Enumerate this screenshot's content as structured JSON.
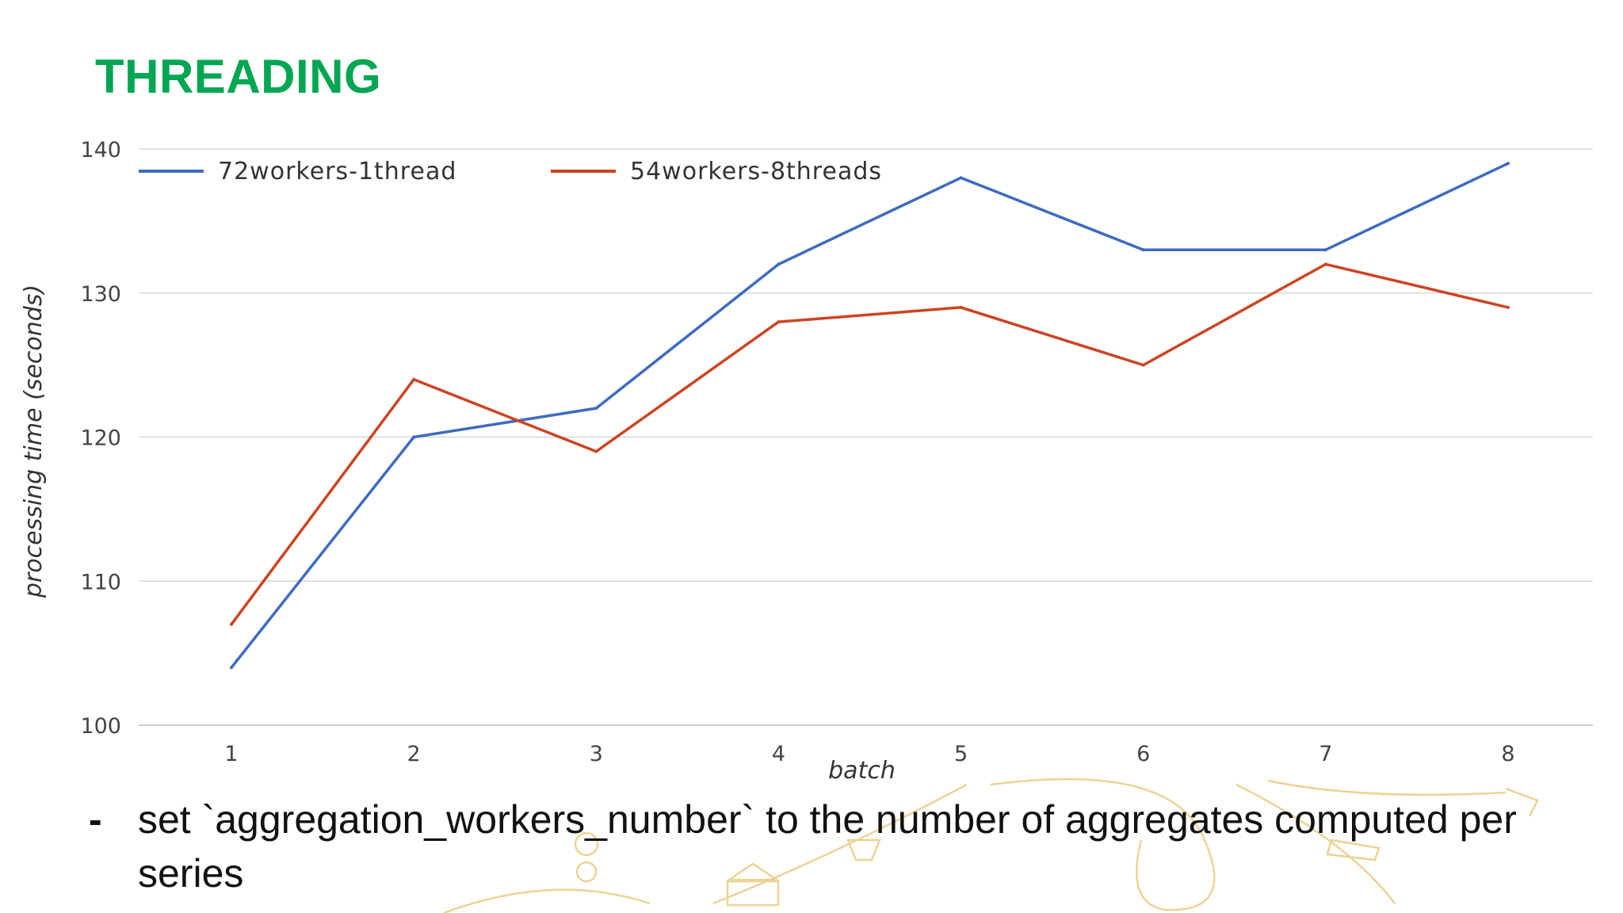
{
  "slide": {
    "title": "THREADING",
    "bullet_marker": "-",
    "bullet_text": "set `aggregation_workers_number` to the number of aggregates computed per series"
  },
  "chart_data": {
    "type": "line",
    "title": "",
    "xlabel": "batch",
    "ylabel": "processing time (seconds)",
    "x": [
      1,
      2,
      3,
      4,
      5,
      6,
      7,
      8
    ],
    "x_tick_labels": [
      "1",
      "2",
      "3",
      "4",
      "5",
      "6",
      "7",
      "8"
    ],
    "ylim": [
      100,
      140
    ],
    "y_ticks": [
      100,
      110,
      120,
      130,
      140
    ],
    "y_tick_labels": [
      "100",
      "110",
      "120",
      "130",
      "140"
    ],
    "grid": true,
    "legend_position": "top-left",
    "series": [
      {
        "name": "72workers-1thread",
        "color": "#3e6bbf",
        "values": [
          104,
          120,
          122,
          132,
          138,
          133,
          133,
          139
        ]
      },
      {
        "name": "54workers-8threads",
        "color": "#cc4422",
        "values": [
          107,
          124,
          119,
          128,
          129,
          125,
          132,
          129
        ]
      }
    ]
  }
}
